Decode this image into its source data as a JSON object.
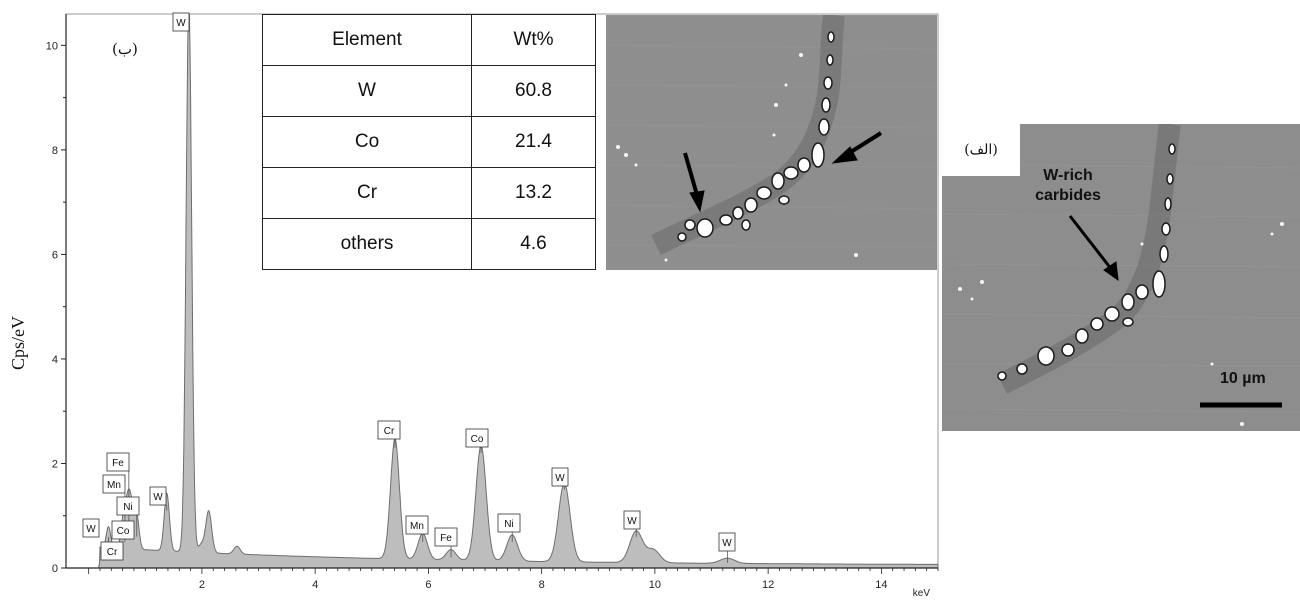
{
  "chart_data": {
    "type": "area",
    "ylabel": "Cps/eV",
    "xunit": "keV",
    "xlim": [
      -0.4,
      15.0
    ],
    "ylim": [
      0,
      10.6
    ],
    "xticks": [
      2,
      4,
      6,
      8,
      10,
      12,
      14
    ],
    "yticks": [
      0,
      2,
      4,
      6,
      8,
      10
    ],
    "panel_label": "(ب)",
    "peaks": [
      {
        "element": "W",
        "energy": 0.35,
        "height": 0.4
      },
      {
        "element": "Cr",
        "energy": 0.6,
        "height": 0.3
      },
      {
        "element": "Mn",
        "energy": 0.64,
        "height": 0.5
      },
      {
        "element": "Fe",
        "energy": 0.71,
        "height": 0.9
      },
      {
        "element": "Ni",
        "energy": 0.85,
        "height": 0.6
      },
      {
        "element": "Co",
        "energy": 0.78,
        "height": 0.55
      },
      {
        "element": "W",
        "energy": 1.38,
        "height": 1.1
      },
      {
        "element": "W",
        "energy": 1.77,
        "height": 10.5
      },
      {
        "element": "Cr",
        "energy": 5.41,
        "height": 2.3
      },
      {
        "element": "Mn",
        "energy": 5.9,
        "height": 0.5
      },
      {
        "element": "Fe",
        "energy": 6.4,
        "height": 0.2
      },
      {
        "element": "Co",
        "energy": 6.93,
        "height": 2.2
      },
      {
        "element": "Ni",
        "energy": 7.48,
        "height": 0.5
      },
      {
        "element": "W",
        "energy": 8.4,
        "height": 1.5
      },
      {
        "element": "W",
        "energy": 9.67,
        "height": 0.6
      },
      {
        "element": "W",
        "energy": 11.28,
        "height": 0.1
      }
    ]
  },
  "composition_table": {
    "headers": [
      "Element",
      "Wt%"
    ],
    "rows": [
      [
        "W",
        "60.8"
      ],
      [
        "Co",
        "21.4"
      ],
      [
        "Cr",
        "13.2"
      ],
      [
        "others",
        "4.6"
      ]
    ]
  },
  "micrograph_a": {
    "label": "(الف)",
    "callout": "W-rich carbides",
    "callout_lines": [
      "W-rich",
      "carbides"
    ],
    "scale_bar": "10 µm"
  },
  "colors": {
    "spectrum_fill": "#bdbdbd",
    "spectrum_line": "#6e6e6e",
    "micrograph_bg": "#8d8d8d",
    "particles": "#ffffff"
  }
}
